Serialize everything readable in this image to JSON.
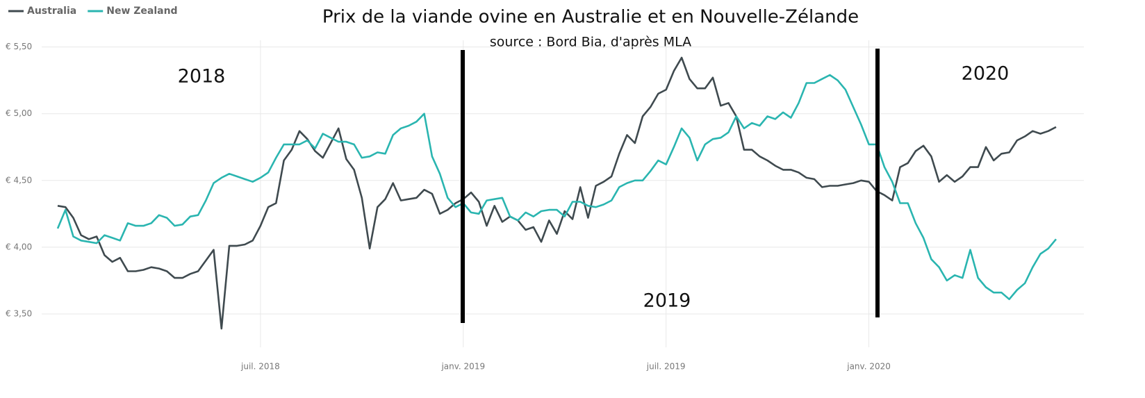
{
  "chart_data": {
    "type": "line",
    "title": "Prix de la viande ovine en Australie et en Nouvelle-Zélande",
    "subtitle": "source : Bord Bia, d'après MLA",
    "annotations": [
      "2018",
      "2019",
      "2020"
    ],
    "categories": [
      null,
      null,
      null,
      null,
      null,
      null,
      null,
      null,
      null,
      null,
      null,
      null,
      null,
      null,
      null,
      null,
      null,
      null,
      null,
      null,
      null,
      null,
      null,
      null,
      null,
      null,
      "juil. 2018",
      null,
      null,
      null,
      null,
      null,
      null,
      null,
      null,
      null,
      null,
      null,
      null,
      null,
      null,
      null,
      null,
      null,
      null,
      null,
      null,
      null,
      null,
      null,
      null,
      null,
      "janv. 2019",
      null,
      null,
      null,
      null,
      null,
      null,
      null,
      null,
      null,
      null,
      null,
      null,
      null,
      null,
      null,
      null,
      null,
      null,
      null,
      null,
      null,
      null,
      null,
      null,
      null,
      "juil. 2019",
      null,
      null,
      null,
      null,
      null,
      null,
      null,
      null,
      null,
      null,
      null,
      null,
      null,
      null,
      null,
      null,
      null,
      null,
      null,
      null,
      null,
      null,
      null,
      null,
      null,
      "janv. 2020",
      null,
      null,
      null,
      null,
      null,
      null,
      null,
      null,
      null,
      null,
      null,
      null,
      null,
      null,
      null,
      null,
      null,
      null,
      null,
      null,
      null,
      null,
      null,
      null
    ],
    "series": [
      {
        "name": "Australia",
        "color": "#3f4a4f",
        "values": [
          4.31,
          4.3,
          4.22,
          4.09,
          4.06,
          4.08,
          3.94,
          3.89,
          3.92,
          3.82,
          3.82,
          3.83,
          3.85,
          3.84,
          3.82,
          3.77,
          3.77,
          3.8,
          3.82,
          3.9,
          3.98,
          3.39,
          4.01,
          4.01,
          4.02,
          4.05,
          4.16,
          4.3,
          4.33,
          4.65,
          4.73,
          4.87,
          4.81,
          4.72,
          4.67,
          4.78,
          4.89,
          4.66,
          4.58,
          4.37,
          3.99,
          4.3,
          4.36,
          4.48,
          4.35,
          4.36,
          4.37,
          4.43,
          4.4,
          4.25,
          4.28,
          4.33,
          4.36,
          4.41,
          4.34,
          4.16,
          4.31,
          4.19,
          4.23,
          4.2,
          4.13,
          4.15,
          4.04,
          4.2,
          4.1,
          4.27,
          4.21,
          4.45,
          4.22,
          4.46,
          4.49,
          4.53,
          4.7,
          4.84,
          4.78,
          4.98,
          5.05,
          5.15,
          5.18,
          5.32,
          5.42,
          5.26,
          5.19,
          5.19,
          5.27,
          5.06,
          5.08,
          4.98,
          4.73,
          4.73,
          4.68,
          4.65,
          4.61,
          4.58,
          4.58,
          4.56,
          4.52,
          4.51,
          4.45,
          4.46,
          4.46,
          4.47,
          4.48,
          4.5,
          4.49,
          4.42,
          4.39,
          4.35,
          4.6,
          4.63,
          4.72,
          4.76,
          4.68,
          4.49,
          4.54,
          4.49,
          4.53,
          4.6,
          4.6,
          4.75,
          4.65,
          4.7,
          4.71,
          4.8,
          4.83,
          4.87,
          4.85,
          4.87,
          4.9
        ]
      },
      {
        "name": "New Zealand",
        "color": "#2ab5b0",
        "values": [
          4.14,
          4.28,
          4.08,
          4.05,
          4.04,
          4.03,
          4.09,
          4.07,
          4.05,
          4.18,
          4.16,
          4.16,
          4.18,
          4.24,
          4.22,
          4.16,
          4.17,
          4.23,
          4.24,
          4.35,
          4.48,
          4.52,
          4.55,
          4.53,
          4.51,
          4.49,
          4.52,
          4.56,
          4.67,
          4.77,
          4.77,
          4.77,
          4.8,
          4.74,
          4.85,
          4.82,
          4.79,
          4.79,
          4.77,
          4.67,
          4.68,
          4.71,
          4.7,
          4.84,
          4.89,
          4.91,
          4.94,
          5.0,
          4.68,
          4.55,
          4.37,
          4.3,
          4.33,
          4.26,
          4.25,
          4.35,
          4.36,
          4.37,
          4.23,
          4.2,
          4.26,
          4.23,
          4.27,
          4.28,
          4.28,
          4.23,
          4.34,
          4.34,
          4.31,
          4.3,
          4.32,
          4.35,
          4.45,
          4.48,
          4.5,
          4.5,
          4.57,
          4.65,
          4.62,
          4.75,
          4.89,
          4.82,
          4.65,
          4.77,
          4.81,
          4.82,
          4.86,
          4.98,
          4.89,
          4.93,
          4.91,
          4.98,
          4.96,
          5.01,
          4.97,
          5.08,
          5.23,
          5.23,
          5.26,
          5.29,
          5.25,
          5.18,
          5.05,
          4.92,
          4.77,
          4.77,
          4.6,
          4.49,
          4.33,
          4.33,
          4.18,
          4.07,
          3.91,
          3.85,
          3.75,
          3.79,
          3.77,
          3.98,
          3.77,
          3.7,
          3.66,
          3.66,
          3.61,
          3.68,
          3.73,
          3.85,
          3.95,
          3.99,
          4.06
        ]
      }
    ],
    "ylim": [
      3.25,
      5.55
    ],
    "yticks": [
      {
        "value": 3.5,
        "label": "€ 3,50"
      },
      {
        "value": 4.0,
        "label": "€ 4,00"
      },
      {
        "value": 4.5,
        "label": "€ 4,50"
      },
      {
        "value": 5.0,
        "label": "€ 5,00"
      },
      {
        "value": 5.5,
        "label": "€ 5,50"
      }
    ],
    "grid": true,
    "legend": "top-left"
  }
}
